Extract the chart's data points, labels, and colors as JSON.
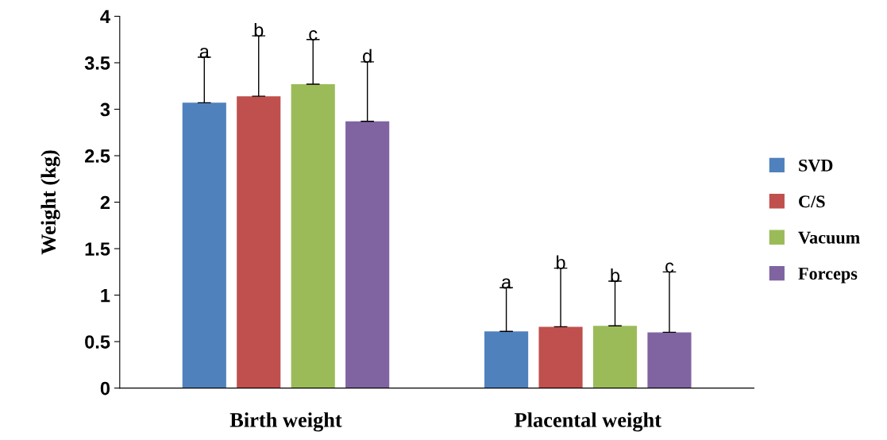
{
  "chart_data": {
    "type": "bar",
    "ylabel": "Weight (kg)",
    "categories": [
      "Birth weight",
      "Placental weight"
    ],
    "series": [
      {
        "name": "SVD",
        "color": "#4f81bd",
        "values": [
          3.07,
          0.61
        ],
        "errors": [
          [
            3.07,
            3.56
          ],
          [
            0.61,
            1.08
          ]
        ]
      },
      {
        "name": "C/S",
        "color": "#c0504d",
        "values": [
          3.14,
          0.66
        ],
        "errors": [
          [
            3.14,
            3.79
          ],
          [
            0.66,
            1.29
          ]
        ]
      },
      {
        "name": "Vacuum",
        "color": "#9bbb59",
        "values": [
          3.27,
          0.67
        ],
        "errors": [
          [
            3.27,
            3.75
          ],
          [
            0.67,
            1.15
          ]
        ]
      },
      {
        "name": "Forceps",
        "color": "#8064a2",
        "values": [
          2.87,
          0.6
        ],
        "errors": [
          [
            2.87,
            3.51
          ],
          [
            0.6,
            1.25
          ]
        ]
      }
    ],
    "annotations": [
      "a",
      "b",
      "c",
      "d",
      "a",
      "b",
      "b",
      "c"
    ],
    "ylim": [
      0,
      4
    ],
    "yticks": [
      0,
      0.5,
      1,
      1.5,
      2,
      2.5,
      3,
      3.5,
      4
    ],
    "grid": false,
    "legend": "right"
  }
}
